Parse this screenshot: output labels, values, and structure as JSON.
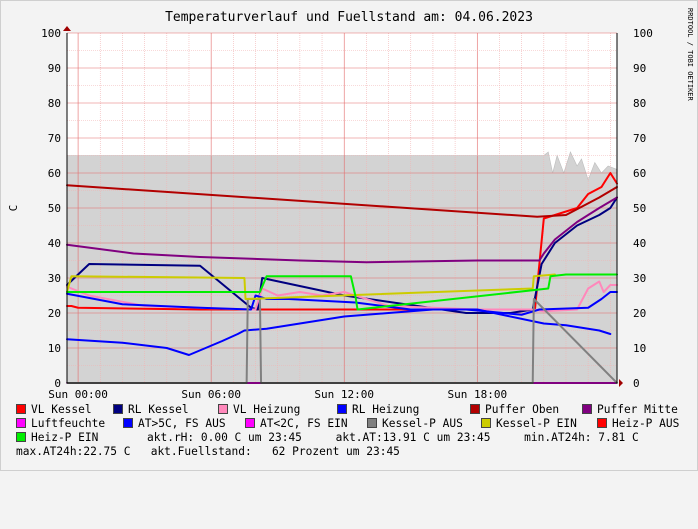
{
  "chart_data": {
    "type": "line",
    "title": "Temperaturverlauf und Fuellstand am: 04.06.2023",
    "ylabel": "C",
    "watermark": "RRDTOOL / TOBI OETIKER",
    "ylim": [
      0,
      100
    ],
    "yticks": [
      0,
      10,
      20,
      30,
      40,
      50,
      60,
      70,
      80,
      90,
      100
    ],
    "xlim": [
      -0.5,
      24.3
    ],
    "xticks": [
      {
        "x": 0,
        "label": "Sun 00:00"
      },
      {
        "x": 6,
        "label": "Sun 06:00"
      },
      {
        "x": 12,
        "label": "Sun 12:00"
      },
      {
        "x": 18,
        "label": "Sun 18:00"
      }
    ],
    "grid": true,
    "legend_position": "bottom",
    "area": {
      "name": "Fuellstand",
      "color": "#d3d3d3",
      "x": [
        -0.5,
        20.3,
        21.0,
        21.2,
        21.4,
        21.6,
        21.9,
        22.2,
        22.5,
        22.7,
        23.0,
        23.3,
        23.6,
        23.9,
        24.3
      ],
      "y": [
        65,
        65,
        65,
        66,
        60,
        65,
        60,
        66,
        62,
        64,
        58,
        63,
        60,
        62,
        61
      ]
    },
    "series": [
      {
        "name": "VL Kessel",
        "color": "#ff0000",
        "x": [
          -0.5,
          -0.3,
          0,
          5.5,
          7.8,
          8.2,
          12.0,
          12.5,
          20.2,
          20.6,
          21.0,
          21.5,
          22.5,
          23.0,
          23.6,
          24.0,
          24.3
        ],
        "y": [
          22,
          22,
          21.5,
          21,
          21,
          21,
          21,
          21,
          21,
          21,
          47,
          48,
          50,
          54,
          56,
          60,
          57
        ]
      },
      {
        "name": "RL Kessel",
        "color": "#000080",
        "x": [
          -0.5,
          0.5,
          5.5,
          7.8,
          8.1,
          8.3,
          12.0,
          17.5,
          19.5,
          20.5,
          20.9,
          21.5,
          22.5,
          23.5,
          24.0,
          24.3
        ],
        "y": [
          28,
          34,
          33.5,
          21.5,
          21,
          30,
          25,
          20,
          20,
          21,
          34,
          40,
          45,
          48,
          50,
          53
        ]
      },
      {
        "name": "VL Heizung",
        "color": "#ff88bb",
        "x": [
          -0.5,
          0.5,
          3.0,
          7.8,
          8.0,
          8.3,
          9.0,
          10.0,
          11.0,
          12.0,
          14.0,
          18.0,
          20.5,
          21.0,
          22.5,
          23.0,
          23.5,
          23.7,
          24.0,
          24.3
        ],
        "y": [
          27.5,
          25,
          22,
          21,
          21,
          27,
          25,
          26,
          25,
          26,
          22,
          21,
          21,
          20.5,
          21,
          27,
          29,
          26,
          28,
          28
        ]
      },
      {
        "name": "RL Heizung",
        "color": "#0000ff",
        "x": [
          -0.5,
          2.0,
          5.5,
          7.8,
          8.0,
          8.5,
          9.5,
          11.0,
          12.5,
          15.0,
          17.5,
          20.0,
          20.8,
          23.0,
          23.6,
          24.0,
          24.3
        ],
        "y": [
          25.5,
          22.5,
          21.5,
          21,
          25,
          24,
          24,
          23.5,
          23,
          21,
          21,
          19.5,
          21,
          21.5,
          24,
          26,
          26
        ]
      },
      {
        "name": "Puffer Oben",
        "color": "#b20000",
        "x": [
          -0.5,
          20.7,
          22.0,
          23.5,
          24.3
        ],
        "y": [
          56.5,
          47.5,
          48,
          53,
          56
        ]
      },
      {
        "name": "Puffer Mitte",
        "color": "#800080",
        "x": [
          -0.5,
          2.5,
          5.5,
          10.0,
          13.0,
          18.0,
          20.8,
          21.0,
          21.5,
          22.5,
          23.5,
          24.3
        ],
        "y": [
          39.5,
          37,
          36,
          35,
          34.5,
          35,
          35,
          37,
          41,
          46,
          50,
          53
        ]
      },
      {
        "name": "Luftfeuchte",
        "color": "#ff00ff",
        "x": [
          -0.5,
          24.3
        ],
        "y": [
          0,
          0
        ]
      },
      {
        "name": "AT>5C, FS AUS",
        "color": "#0000ff",
        "x": [
          -0.5,
          2.0,
          4.0,
          5.0,
          6.5,
          7.2,
          7.5,
          8.5,
          10.0,
          12.0,
          14.0,
          16.0,
          18.0,
          21.0,
          22.0,
          23.5,
          24.0
        ],
        "y": [
          12.5,
          11.5,
          10,
          8,
          12,
          14,
          15,
          15.5,
          17,
          19,
          20,
          21,
          21,
          17,
          16.5,
          15,
          14
        ]
      },
      {
        "name": "AT<2C, FS EIN",
        "color": "#ff00ff",
        "x": [],
        "y": []
      },
      {
        "name": "Kessel-P AUS",
        "color": "#808080",
        "x": [
          -0.5,
          7.6,
          7.65,
          8.2,
          8.25,
          20.5,
          20.55,
          24.3
        ],
        "y": [
          0,
          0,
          24,
          24,
          0,
          0,
          24,
          0
        ]
      },
      {
        "name": "Kessel-P EIN",
        "color": "#cccc00",
        "x": [
          -0.5,
          -0.3,
          7.5,
          7.55,
          20.5,
          20.55,
          21.5
        ],
        "y": [
          26,
          30.5,
          30,
          24,
          27,
          30.5,
          31
        ]
      },
      {
        "name": "Heiz-P AUS",
        "color": "#ff0000",
        "x": [],
        "y": []
      },
      {
        "name": "Heiz-P EIN",
        "color": "#00ee00",
        "x": [
          -0.5,
          -0.4,
          8.2,
          8.5,
          12.3,
          12.5,
          12.6,
          21.2,
          21.3,
          22.0,
          24.3
        ],
        "y": [
          26,
          26,
          26,
          30.5,
          30.5,
          25,
          21,
          27,
          30.5,
          31,
          31
        ]
      }
    ]
  },
  "legend": {
    "rows": [
      [
        {
          "label": "VL Kessel",
          "color": "#ff0000"
        },
        {
          "label": "RL Kessel",
          "color": "#000080"
        },
        {
          "label": "VL Heizung",
          "color": "#ff88bb"
        },
        {
          "label": "RL Heizung",
          "color": "#0000ff"
        },
        {
          "label": "Puffer Oben",
          "color": "#b20000"
        },
        {
          "label": "Puffer Mitte",
          "color": "#800080"
        }
      ],
      [
        {
          "label": "Luftfeuchte",
          "color": "#ff00ff"
        },
        {
          "label": "AT>5C, FS AUS",
          "color": "#0000ff"
        },
        {
          "label": "AT<2C, FS EIN",
          "color": "#ff00ff"
        },
        {
          "label": "Kessel-P AUS",
          "color": "#808080"
        },
        {
          "label": "Kessel-P EIN",
          "color": "#cccc00"
        },
        {
          "label": "Heiz-P AUS",
          "color": "#ff0000"
        }
      ]
    ],
    "heiz_p_ein": {
      "label": "Heiz-P EIN",
      "color": "#00ee00"
    },
    "stats_row3": "akt.rH: 0.00 C um 23:45     akt.AT:13.91 C um 23:45     min.AT24h: 7.81 C",
    "stats_row4": "max.AT24h:22.75 C   akt.Fuellstand:   62 Prozent um 23:45"
  }
}
